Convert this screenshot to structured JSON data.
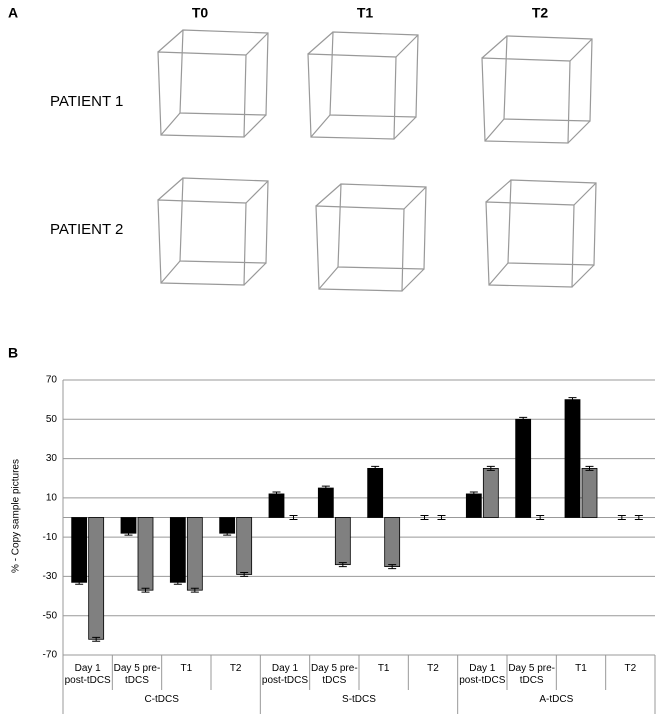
{
  "panel_a": {
    "label": "A",
    "columns": [
      "T0",
      "T1",
      "T2"
    ],
    "rows": [
      "PATIENT 1",
      "PATIENT 2"
    ]
  },
  "panel_b_label": "B",
  "chart_data": {
    "type": "bar",
    "y_label": "% - Copy sample pictures",
    "categories": [
      "Day 1 post-tDCS",
      "Day 5 pre-tDCS",
      "T1",
      "T2",
      "Day 1 post-tDCS",
      "Day 5 pre-tDCS",
      "T1",
      "T2",
      "Day 1 post-tDCS",
      "Day 5 pre-tDCS",
      "T1",
      "T2"
    ],
    "groups": [
      "C-tDCS",
      "S-tDCS",
      "A-tDCS"
    ],
    "series": [
      {
        "color": "#000000",
        "values": [
          -33,
          -8,
          -33,
          -8,
          12,
          15,
          25,
          0,
          12,
          50,
          60,
          0
        ],
        "errors": [
          1,
          1,
          1,
          1,
          1,
          1,
          1,
          1,
          1,
          1,
          1,
          1
        ]
      },
      {
        "color": "#808080",
        "values": [
          -62,
          -37,
          -37,
          -29,
          0,
          -24,
          -25,
          0,
          25,
          0,
          25,
          0
        ],
        "errors": [
          1,
          1,
          1,
          1,
          1,
          1,
          1,
          1,
          1,
          1,
          1,
          1
        ]
      }
    ],
    "ylim": [
      -70,
      70
    ],
    "yticks": [
      -70,
      -50,
      -30,
      -10,
      10,
      30,
      50,
      70
    ],
    "grid": true
  }
}
